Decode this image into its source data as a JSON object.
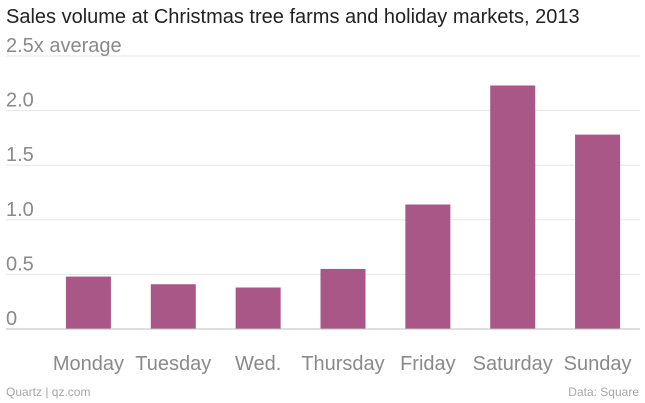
{
  "chart_data": {
    "type": "bar",
    "title": "Sales volume at Christmas tree farms and holiday markets, 2013",
    "categories": [
      "Monday",
      "Tuesday",
      "Wed.",
      "Thursday",
      "Friday",
      "Saturday",
      "Sunday"
    ],
    "values": [
      0.48,
      0.41,
      0.38,
      0.55,
      1.14,
      2.23,
      1.78
    ],
    "ylim": [
      0,
      2.5
    ],
    "yticks": [
      0,
      0.5,
      1.0,
      1.5,
      2.0,
      2.5
    ],
    "ytick_labels": [
      "0",
      "0.5",
      "1.0",
      "1.5",
      "2.0",
      "2.5x average"
    ],
    "xlabel": "",
    "ylabel": "",
    "grid": true,
    "bar_color": "#a95787",
    "grid_color": "#e6e6e6",
    "axis_color": "#bfbfbf",
    "tick_label_color": "#8a8a8a"
  },
  "footer": {
    "source_left": "Quartz | qz.com",
    "source_right": "Data: Square"
  }
}
